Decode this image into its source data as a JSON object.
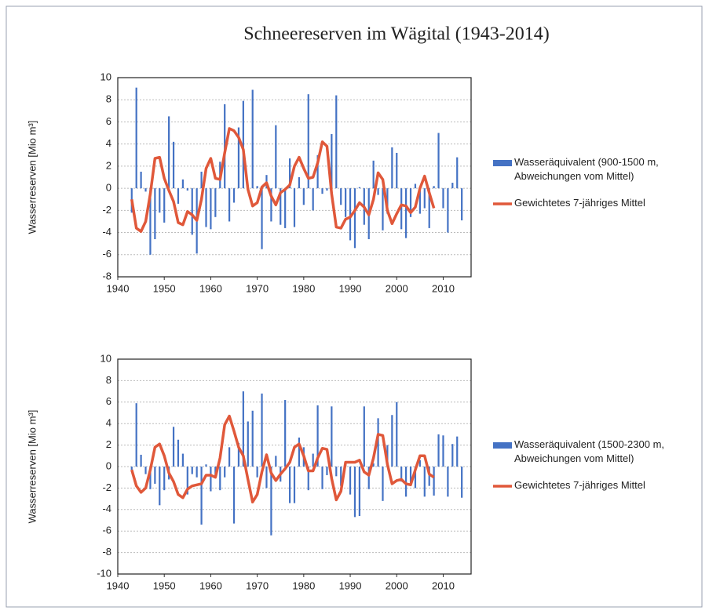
{
  "chart_data": [
    {
      "type": "bar",
      "title": "Schneereserven im Wägital (1943-2014)",
      "ylabel": "Wasserreserven [Mio m³]",
      "x": [
        1943,
        1944,
        1945,
        1946,
        1947,
        1948,
        1949,
        1950,
        1951,
        1952,
        1953,
        1954,
        1955,
        1956,
        1957,
        1958,
        1959,
        1960,
        1961,
        1962,
        1963,
        1964,
        1965,
        1966,
        1967,
        1968,
        1969,
        1970,
        1971,
        1972,
        1973,
        1974,
        1975,
        1976,
        1977,
        1978,
        1979,
        1980,
        1981,
        1982,
        1983,
        1984,
        1985,
        1986,
        1987,
        1988,
        1989,
        1990,
        1991,
        1992,
        1993,
        1994,
        1995,
        1996,
        1997,
        1998,
        1999,
        2000,
        2001,
        2002,
        2003,
        2004,
        2005,
        2006,
        2007,
        2008,
        2009,
        2010,
        2011,
        2012,
        2013,
        2014
      ],
      "series": [
        {
          "name": "Wasseräquivalent (900-1500 m, Abweichungen vom Mittel)",
          "type": "bar",
          "color": "#4472c4",
          "values": [
            -2.2,
            9.1,
            1.5,
            -0.3,
            -6.0,
            -4.6,
            -2.2,
            -3.1,
            6.5,
            4.2,
            -1.4,
            0.8,
            -0.2,
            -4.2,
            -5.9,
            1.5,
            -3.5,
            -3.7,
            -2.6,
            2.4,
            7.6,
            -3.0,
            -1.3,
            5.5,
            7.9,
            0.2,
            8.9,
            0.2,
            -5.5,
            1.2,
            -3.0,
            5.7,
            -3.3,
            -3.6,
            2.7,
            -3.5,
            1.0,
            -1.5,
            8.5,
            -2.0,
            3.0,
            -0.5,
            -0.2,
            4.9,
            8.4,
            -1.5,
            -2.6,
            -4.7,
            -5.4,
            0.1,
            -3.3,
            -4.6,
            2.5,
            -0.6,
            -3.8,
            -2.3,
            3.7,
            3.2,
            -3.7,
            -4.5,
            -2.6,
            0.4,
            -2.3,
            -1.8,
            -3.6,
            0.2,
            5.0,
            -1.8,
            -4.0,
            0.5,
            2.8,
            -2.9
          ]
        },
        {
          "name": "Gewichtetes 7-jähriges Mittel",
          "type": "line",
          "color": "#e0583a",
          "values": [
            -1.0,
            -3.6,
            -3.9,
            -3.0,
            -0.5,
            2.7,
            2.8,
            0.9,
            -0.2,
            -1.2,
            -3.1,
            -3.3,
            -2.1,
            -2.4,
            -2.9,
            -1.0,
            1.8,
            2.7,
            0.9,
            0.8,
            3.2,
            5.4,
            5.2,
            4.6,
            3.5,
            -0.1,
            -1.6,
            -1.3,
            0.1,
            0.5,
            -0.7,
            -1.5,
            -0.4,
            -0.1,
            0.3,
            2.0,
            2.8,
            1.8,
            0.9,
            1.0,
            2.3,
            4.2,
            3.8,
            -0.5,
            -3.5,
            -3.6,
            -2.8,
            -2.6,
            -2.0,
            -1.3,
            -1.7,
            -2.4,
            -1.0,
            1.4,
            0.8,
            -2.0,
            -3.2,
            -2.3,
            -1.5,
            -1.6,
            -2.2,
            -1.7,
            0.0,
            1.1,
            -0.4,
            -1.8,
            null,
            null,
            null,
            null,
            null,
            null
          ]
        }
      ],
      "xlim": [
        1940,
        2016
      ],
      "xticks": [
        1940,
        1950,
        1960,
        1970,
        1980,
        1990,
        2000,
        2010
      ],
      "ylim": [
        -8,
        10
      ],
      "yticks": [
        -8,
        -6,
        -4,
        -2,
        0,
        2,
        4,
        6,
        8,
        10
      ],
      "grid": true
    },
    {
      "type": "bar",
      "ylabel": "Wasserreserven [Mio m³]",
      "x": [
        1943,
        1944,
        1945,
        1946,
        1947,
        1948,
        1949,
        1950,
        1951,
        1952,
        1953,
        1954,
        1955,
        1956,
        1957,
        1958,
        1959,
        1960,
        1961,
        1962,
        1963,
        1964,
        1965,
        1966,
        1967,
        1968,
        1969,
        1970,
        1971,
        1972,
        1973,
        1974,
        1975,
        1976,
        1977,
        1978,
        1979,
        1980,
        1981,
        1982,
        1983,
        1984,
        1985,
        1986,
        1987,
        1988,
        1989,
        1990,
        1991,
        1992,
        1993,
        1994,
        1995,
        1996,
        1997,
        1998,
        1999,
        2000,
        2001,
        2002,
        2003,
        2004,
        2005,
        2006,
        2007,
        2008,
        2009,
        2010,
        2011,
        2012,
        2013,
        2014
      ],
      "series": [
        {
          "name": "Wasseräquivalent (1500-2300 m, Abweichungen vom Mittel)",
          "type": "bar",
          "color": "#4472c4",
          "values": [
            -0.3,
            5.9,
            1.1,
            -0.7,
            -2.1,
            -1.6,
            -3.6,
            -2.2,
            -1.2,
            3.7,
            2.5,
            1.2,
            -2.6,
            -0.7,
            -1.0,
            -5.4,
            0.2,
            -2.3,
            -0.8,
            -2.2,
            -1.0,
            1.8,
            -5.3,
            2.2,
            7.0,
            4.2,
            5.2,
            -1.0,
            6.8,
            -2.0,
            -6.4,
            1.0,
            -1.4,
            6.2,
            -3.4,
            -3.4,
            2.7,
            1.8,
            -2.2,
            1.2,
            5.7,
            -2.1,
            -0.8,
            5.6,
            -0.9,
            -1.8,
            0.4,
            -2.6,
            -4.7,
            -4.6,
            5.6,
            -2.1,
            0.3,
            4.5,
            -3.2,
            2.0,
            4.8,
            6.0,
            -1.4,
            -2.8,
            -1.7,
            -2.0,
            0.6,
            -2.8,
            -1.8,
            -2.7,
            3.0,
            2.9,
            -2.8,
            2.1,
            2.8,
            -2.9
          ]
        },
        {
          "name": "Gewichtetes 7-jähriges Mittel",
          "type": "line",
          "color": "#e0583a",
          "values": [
            -0.3,
            -1.8,
            -2.4,
            -2.0,
            -0.3,
            1.8,
            2.1,
            1.0,
            -0.6,
            -1.4,
            -2.6,
            -2.9,
            -2.1,
            -1.8,
            -1.7,
            -1.6,
            -0.8,
            -0.8,
            -1.0,
            0.8,
            3.9,
            4.7,
            3.3,
            1.8,
            1.0,
            -1.2,
            -3.3,
            -2.6,
            -0.5,
            1.1,
            -0.6,
            -1.3,
            -0.7,
            -0.2,
            0.4,
            1.8,
            2.1,
            1.0,
            -0.4,
            -0.4,
            0.8,
            1.7,
            1.6,
            -1.1,
            -3.1,
            -2.3,
            0.4,
            0.4,
            0.4,
            0.6,
            -0.5,
            -0.8,
            0.8,
            3.0,
            2.9,
            0.2,
            -1.6,
            -1.3,
            -1.2,
            -1.6,
            -1.7,
            -0.3,
            1.0,
            1.0,
            -0.7,
            -1.0,
            null,
            null,
            null,
            null,
            null,
            null
          ]
        }
      ],
      "xlim": [
        1940,
        2016
      ],
      "xticks": [
        1940,
        1950,
        1960,
        1970,
        1980,
        1990,
        2000,
        2010
      ],
      "ylim": [
        -10,
        10
      ],
      "yticks": [
        -10,
        -8,
        -6,
        -4,
        -2,
        0,
        2,
        4,
        6,
        8,
        10
      ],
      "grid": true
    }
  ]
}
